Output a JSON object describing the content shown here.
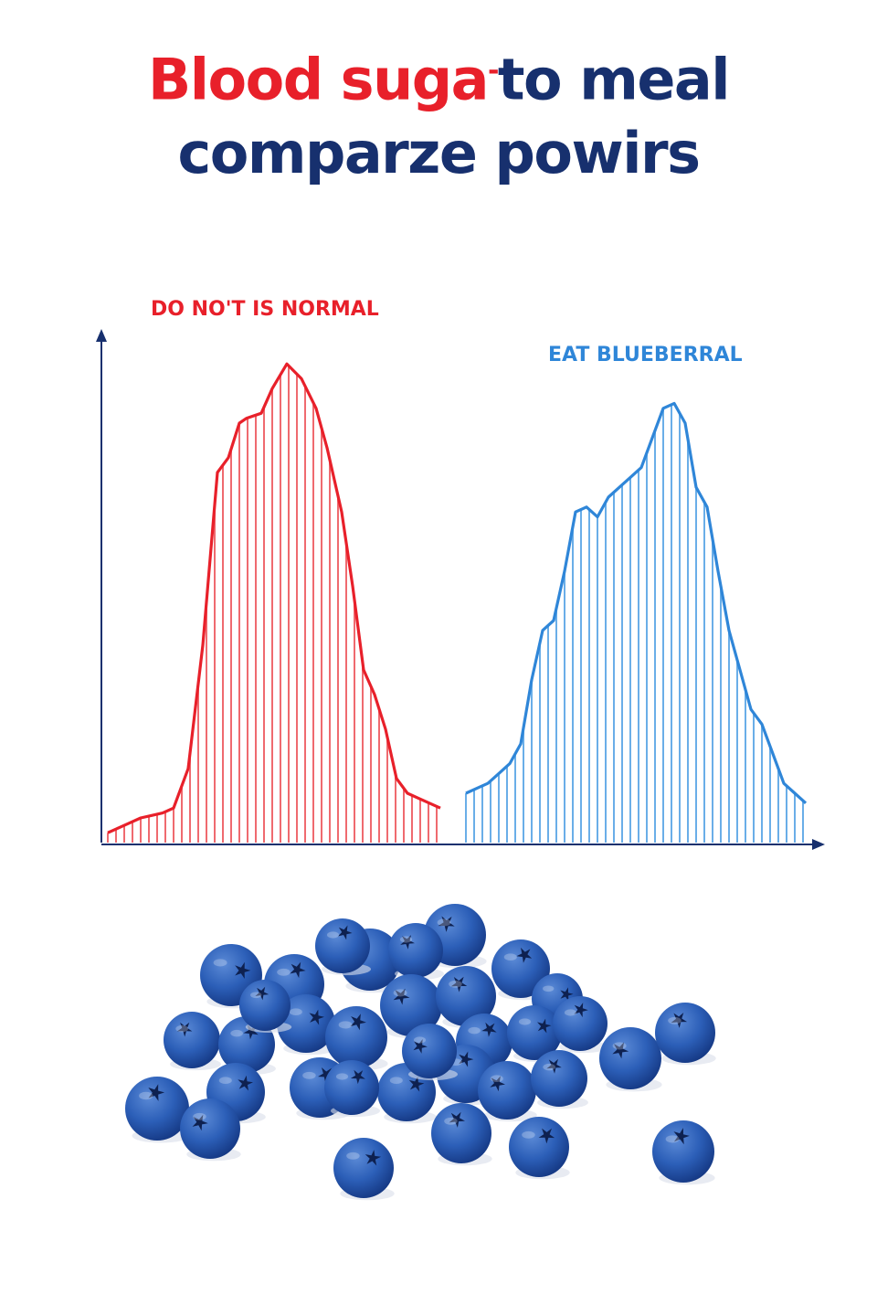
{
  "title": {
    "line1_red": "Blood suga",
    "line1_mark": "-",
    "line1_blue": "to meal",
    "line2": "comparze powirs"
  },
  "colors": {
    "red": "#e8202a",
    "red_fill": "#ef6a6f",
    "blue": "#2f86d8",
    "blue_fill": "#6aaee8",
    "navy": "#17306e",
    "berry": "#2c5fb8",
    "berry_dark": "#163a86",
    "berry_light": "#5b8ad6"
  },
  "chart_data": {
    "type": "area",
    "title": "",
    "xlabel": "",
    "ylabel": "",
    "ylim": [
      0,
      100
    ],
    "grid": false,
    "series": [
      {
        "name": "DO NO'T IS NORMAL",
        "color": "#e8202a",
        "x": [
          0,
          3,
          6,
          9,
          12,
          15,
          18,
          22,
          26,
          30,
          33,
          36,
          38,
          42,
          45,
          49,
          53,
          57,
          60,
          64,
          67,
          70,
          73,
          76,
          79,
          82,
          85,
          88,
          91
        ],
        "y": [
          2,
          3,
          4,
          5,
          5.5,
          6,
          7,
          15,
          40,
          75,
          78,
          85,
          86,
          87,
          92,
          97,
          94,
          88,
          80,
          67,
          52,
          35,
          30,
          23,
          13,
          10,
          9,
          8,
          7
        ]
      },
      {
        "name": "EAT BLUEBERRAL",
        "color": "#2f86d8",
        "x": [
          98,
          101,
          104,
          107,
          110,
          113,
          116,
          119,
          122,
          125,
          128,
          131,
          134,
          137,
          140,
          143,
          146,
          149,
          152,
          155,
          158,
          161,
          164,
          167,
          170,
          173,
          176,
          179,
          182,
          185,
          188,
          191
        ],
        "y": [
          10,
          11,
          12,
          14,
          16,
          20,
          33,
          43,
          45,
          55,
          67,
          68,
          66,
          70,
          72,
          74,
          76,
          82,
          88,
          89,
          85,
          72,
          68,
          55,
          43,
          35,
          27,
          24,
          18,
          12,
          10,
          8
        ]
      }
    ],
    "annotations": [
      "DO NO'T IS NORMAL",
      "EAT BLUEBERRAL"
    ]
  },
  "illustration": {
    "icon": "blueberries-pile-icon"
  }
}
